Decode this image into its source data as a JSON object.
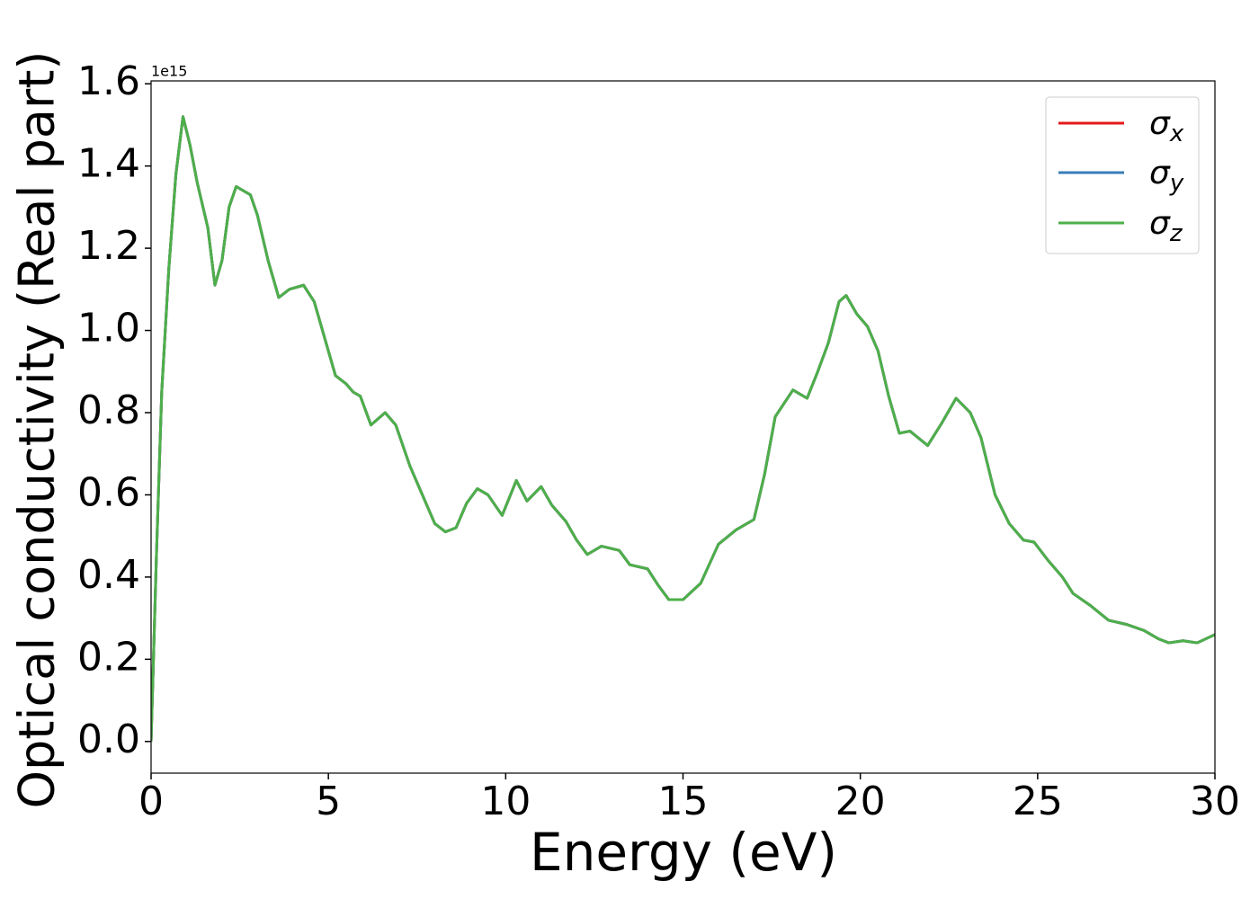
{
  "chart_data": {
    "type": "line",
    "xlabel": "Energy (eV)",
    "ylabel": "Optical conductivity (Real part)",
    "y_offset_label": "1e15",
    "xlim": [
      0,
      30
    ],
    "xticks": [
      0,
      5,
      10,
      15,
      20,
      25,
      30
    ],
    "ylim": [
      -0.077,
      1.607
    ],
    "yticks": [
      {
        "value": 0,
        "label": "0.0"
      },
      0.2,
      0.4,
      0.6,
      0.8,
      {
        "value": 1,
        "label": "1.0"
      },
      1.2,
      1.4,
      1.6
    ],
    "legend": "upper right",
    "x": [
      0,
      0.15,
      0.3,
      0.5,
      0.7,
      0.9,
      1.1,
      1.3,
      1.6,
      1.8,
      2.0,
      2.2,
      2.4,
      2.8,
      3.0,
      3.3,
      3.6,
      3.9,
      4.3,
      4.6,
      4.9,
      5.2,
      5.5,
      5.7,
      5.9,
      6.2,
      6.6,
      6.9,
      7.3,
      7.7,
      8.0,
      8.3,
      8.6,
      8.9,
      9.2,
      9.5,
      9.9,
      10.3,
      10.6,
      11.0,
      11.3,
      11.7,
      12.0,
      12.3,
      12.7,
      13.2,
      13.5,
      14.0,
      14.3,
      14.6,
      15.0,
      15.5,
      16.0,
      16.5,
      17.0,
      17.3,
      17.6,
      18.1,
      18.5,
      18.8,
      19.1,
      19.4,
      19.6,
      19.9,
      20.2,
      20.5,
      20.8,
      21.1,
      21.4,
      21.9,
      22.3,
      22.7,
      23.1,
      23.4,
      23.8,
      24.2,
      24.6,
      24.9,
      25.3,
      25.7,
      26.0,
      26.5,
      27.0,
      27.5,
      28.0,
      28.4,
      28.7,
      29.1,
      29.5,
      30.0
    ],
    "series": [
      {
        "name": "σx",
        "color": "#e41a1c",
        "values": [
          0,
          0.45,
          0.85,
          1.15,
          1.38,
          1.52,
          1.45,
          1.36,
          1.25,
          1.11,
          1.17,
          1.3,
          1.35,
          1.33,
          1.28,
          1.17,
          1.08,
          1.1,
          1.11,
          1.07,
          0.98,
          0.89,
          0.87,
          0.85,
          0.84,
          0.77,
          0.8,
          0.77,
          0.67,
          0.59,
          0.53,
          0.51,
          0.52,
          0.58,
          0.615,
          0.6,
          0.55,
          0.635,
          0.585,
          0.62,
          0.575,
          0.535,
          0.49,
          0.455,
          0.475,
          0.465,
          0.43,
          0.42,
          0.38,
          0.345,
          0.345,
          0.385,
          0.48,
          0.515,
          0.54,
          0.65,
          0.79,
          0.855,
          0.835,
          0.9,
          0.97,
          1.07,
          1.085,
          1.04,
          1.01,
          0.95,
          0.84,
          0.75,
          0.755,
          0.72,
          0.775,
          0.835,
          0.8,
          0.74,
          0.6,
          0.53,
          0.49,
          0.485,
          0.44,
          0.4,
          0.36,
          0.33,
          0.295,
          0.285,
          0.27,
          0.25,
          0.24,
          0.245,
          0.24,
          0.26
        ]
      },
      {
        "name": "σy",
        "color": "#377eb8",
        "values": [
          0,
          0.45,
          0.85,
          1.15,
          1.38,
          1.52,
          1.45,
          1.36,
          1.25,
          1.11,
          1.17,
          1.3,
          1.35,
          1.33,
          1.28,
          1.17,
          1.08,
          1.1,
          1.11,
          1.07,
          0.98,
          0.89,
          0.87,
          0.85,
          0.84,
          0.77,
          0.8,
          0.77,
          0.67,
          0.59,
          0.53,
          0.51,
          0.52,
          0.58,
          0.615,
          0.6,
          0.55,
          0.635,
          0.585,
          0.62,
          0.575,
          0.535,
          0.49,
          0.455,
          0.475,
          0.465,
          0.43,
          0.42,
          0.38,
          0.345,
          0.345,
          0.385,
          0.48,
          0.515,
          0.54,
          0.65,
          0.79,
          0.855,
          0.835,
          0.9,
          0.97,
          1.07,
          1.085,
          1.04,
          1.01,
          0.95,
          0.84,
          0.75,
          0.755,
          0.72,
          0.775,
          0.835,
          0.8,
          0.74,
          0.6,
          0.53,
          0.49,
          0.485,
          0.44,
          0.4,
          0.36,
          0.33,
          0.295,
          0.285,
          0.27,
          0.25,
          0.24,
          0.245,
          0.24,
          0.26
        ]
      },
      {
        "name": "σz",
        "color": "#4daf4a",
        "values": [
          0,
          0.45,
          0.85,
          1.15,
          1.38,
          1.52,
          1.45,
          1.36,
          1.25,
          1.11,
          1.17,
          1.3,
          1.35,
          1.33,
          1.28,
          1.17,
          1.08,
          1.1,
          1.11,
          1.07,
          0.98,
          0.89,
          0.87,
          0.85,
          0.84,
          0.77,
          0.8,
          0.77,
          0.67,
          0.59,
          0.53,
          0.51,
          0.52,
          0.58,
          0.615,
          0.6,
          0.55,
          0.635,
          0.585,
          0.62,
          0.575,
          0.535,
          0.49,
          0.455,
          0.475,
          0.465,
          0.43,
          0.42,
          0.38,
          0.345,
          0.345,
          0.385,
          0.48,
          0.515,
          0.54,
          0.65,
          0.79,
          0.855,
          0.835,
          0.9,
          0.97,
          1.07,
          1.085,
          1.04,
          1.01,
          0.95,
          0.84,
          0.75,
          0.755,
          0.72,
          0.775,
          0.835,
          0.8,
          0.74,
          0.6,
          0.53,
          0.49,
          0.485,
          0.44,
          0.4,
          0.36,
          0.33,
          0.295,
          0.285,
          0.27,
          0.25,
          0.24,
          0.245,
          0.24,
          0.26
        ]
      }
    ]
  }
}
